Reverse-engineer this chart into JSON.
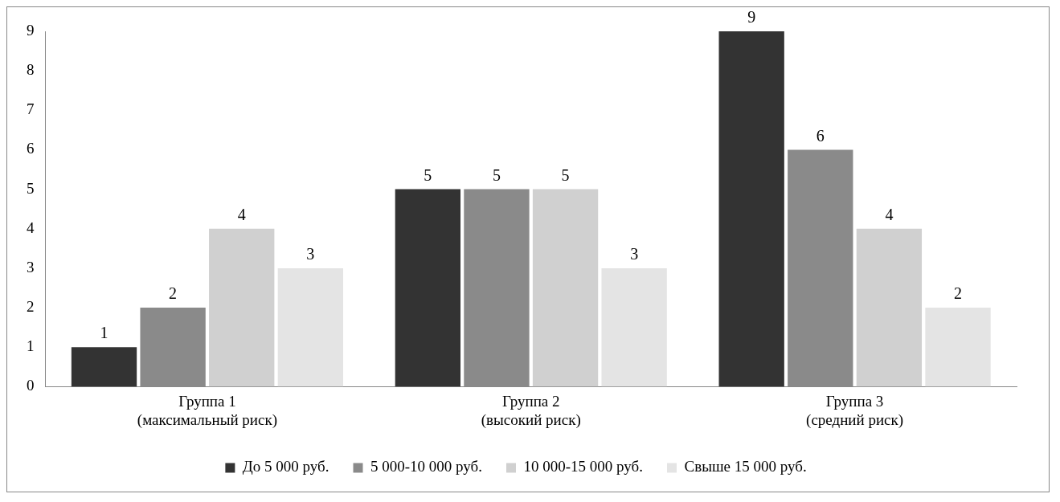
{
  "chart_data": {
    "type": "bar",
    "categories": [
      "Группа 1\n(максимальный риск)",
      "Группа 2\n(высокий риск)",
      "Группа 3\n(средний риск)"
    ],
    "series": [
      {
        "name": "До 5 000 руб.",
        "color": "#333333",
        "values": [
          1,
          5,
          9
        ]
      },
      {
        "name": "5 000-10 000 руб.",
        "color": "#8a8a8a",
        "values": [
          2,
          5,
          6
        ]
      },
      {
        "name": "10 000-15 000 руб.",
        "color": "#d0d0d0",
        "values": [
          4,
          5,
          4
        ]
      },
      {
        "name": "Свыше 15 000 руб.",
        "color": "#e4e4e4",
        "values": [
          3,
          3,
          2
        ]
      }
    ],
    "ylim": [
      0,
      9
    ],
    "yticks": [
      0,
      1,
      2,
      3,
      4,
      5,
      6,
      7,
      8,
      9
    ],
    "grid": false,
    "legend": "bottom",
    "data_labels": true
  }
}
